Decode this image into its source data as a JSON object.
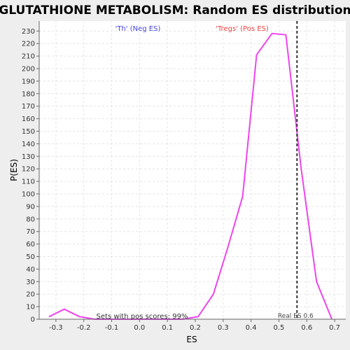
{
  "chart_data": {
    "type": "line",
    "title": "GLUTATHIONE METABOLISM: Random ES distribution",
    "xlabel": "ES",
    "ylabel": "P(ES)",
    "xlim": [
      -0.36,
      0.74
    ],
    "ylim": [
      0,
      238
    ],
    "x_ticks": [
      -0.3,
      -0.2,
      -0.1,
      0.0,
      0.1,
      0.2,
      0.3,
      0.4,
      0.5,
      0.6,
      0.7
    ],
    "x_tick_labels": [
      "-0.3",
      "-0.2",
      "-0.1",
      "0.0",
      "0.1",
      "0.2",
      "0.3",
      "0.4",
      "0.5",
      "0.6",
      "0.7"
    ],
    "y_ticks": [
      0,
      10,
      20,
      30,
      40,
      50,
      60,
      70,
      80,
      90,
      100,
      110,
      120,
      130,
      140,
      150,
      160,
      170,
      180,
      190,
      200,
      210,
      220,
      230
    ],
    "grid": true,
    "series": [
      {
        "color": "#ee44ee",
        "x": [
          -0.325,
          -0.27,
          -0.215,
          -0.16,
          -0.11,
          -0.06,
          -0.005,
          0.05,
          0.1,
          0.155,
          0.21,
          0.265,
          0.315,
          0.37,
          0.42,
          0.475,
          0.525,
          0.58,
          0.635,
          0.69
        ],
        "y": [
          2,
          8,
          2,
          0,
          0,
          0,
          0,
          0,
          0,
          0,
          2,
          20,
          56,
          98,
          211,
          228,
          227,
          120,
          30,
          0
        ]
      }
    ],
    "real_es": {
      "value": 0.565,
      "label": "Real ES 0.6",
      "color": "#333333"
    },
    "annotations": {
      "neg_label": "'Th' (Neg ES)",
      "neg_color": "#4444dd",
      "pos_label": "'Tregs' (Pos ES)",
      "pos_color": "#ee4444",
      "pos_scores_text": "Sets with pos scores: 99%"
    },
    "colors": {
      "plot_bg": "#ffffff",
      "page_bg": "#eeeeee",
      "grid": "#e4e4e4"
    }
  }
}
